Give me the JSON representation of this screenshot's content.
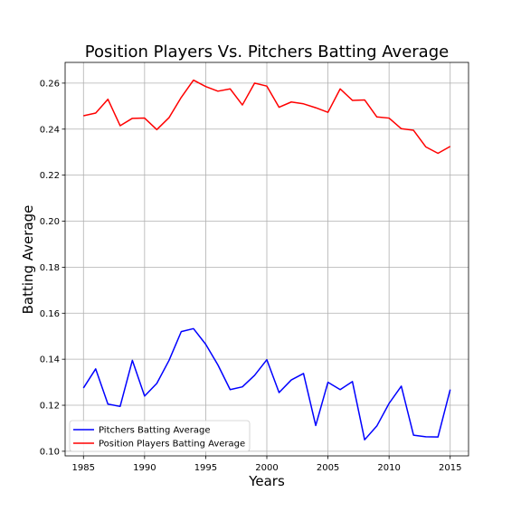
{
  "chart_data": {
    "type": "line",
    "title": "Position Players Vs. Pitchers Batting Average",
    "xlabel": "Years",
    "ylabel": "Batting Average",
    "xlim": [
      1983.5,
      2016.5
    ],
    "ylim": [
      0.098,
      0.269
    ],
    "xticks": [
      1985,
      1990,
      1995,
      2000,
      2005,
      2010,
      2015
    ],
    "xtick_labels": [
      "1985",
      "1990",
      "1995",
      "2000",
      "2005",
      "2010",
      "2015"
    ],
    "yticks": [
      0.1,
      0.12,
      0.14,
      0.16,
      0.18,
      0.2,
      0.22,
      0.24,
      0.26
    ],
    "ytick_labels": [
      "0.10",
      "0.12",
      "0.14",
      "0.16",
      "0.18",
      "0.20",
      "0.22",
      "0.24",
      "0.26"
    ],
    "grid": true,
    "legend_position": "bottom-left",
    "x": [
      1985,
      1986,
      1987,
      1988,
      1989,
      1990,
      1991,
      1992,
      1993,
      1994,
      1995,
      1996,
      1997,
      1998,
      1999,
      2000,
      2001,
      2002,
      2003,
      2004,
      2005,
      2006,
      2007,
      2008,
      2009,
      2010,
      2011,
      2012,
      2013,
      2014,
      2015
    ],
    "series": [
      {
        "name": "Pitchers Batting Average",
        "color": "#0000ff",
        "values": [
          0.1275,
          0.1358,
          0.1205,
          0.1195,
          0.1395,
          0.124,
          0.1295,
          0.1395,
          0.152,
          0.1533,
          0.1465,
          0.1375,
          0.1268,
          0.128,
          0.133,
          0.1398,
          0.1255,
          0.131,
          0.1338,
          0.1112,
          0.13,
          0.1268,
          0.1303,
          0.105,
          0.111,
          0.1208,
          0.1283,
          0.107,
          0.1063,
          0.1062,
          0.1268
        ]
      },
      {
        "name": "Position Players Batting Average",
        "color": "#ff0000",
        "values": [
          0.2458,
          0.247,
          0.253,
          0.2415,
          0.2447,
          0.2448,
          0.2398,
          0.245,
          0.2538,
          0.2613,
          0.2585,
          0.2565,
          0.2575,
          0.2505,
          0.26,
          0.2587,
          0.2495,
          0.2518,
          0.251,
          0.2493,
          0.2473,
          0.2575,
          0.2525,
          0.2527,
          0.2453,
          0.2448,
          0.2402,
          0.2395,
          0.2323,
          0.2295,
          0.2325
        ]
      }
    ]
  }
}
